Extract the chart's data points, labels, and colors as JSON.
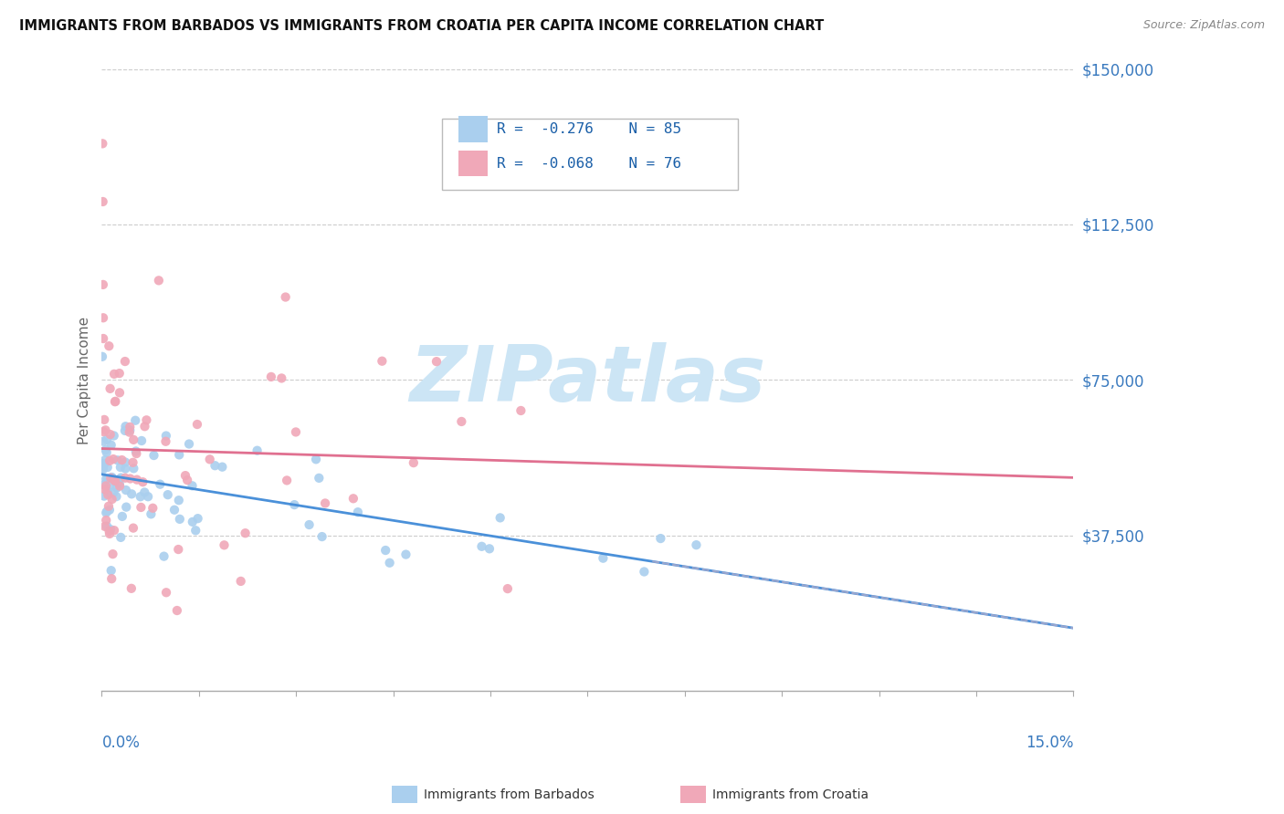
{
  "title": "IMMIGRANTS FROM BARBADOS VS IMMIGRANTS FROM CROATIA PER CAPITA INCOME CORRELATION CHART",
  "source": "Source: ZipAtlas.com",
  "ylabel": "Per Capita Income",
  "y_ticks": [
    0,
    37500,
    75000,
    112500,
    150000
  ],
  "y_tick_labels": [
    "",
    "$37,500",
    "$75,000",
    "$112,500",
    "$150,000"
  ],
  "x_min": 0.0,
  "x_max": 15.0,
  "y_min": 0,
  "y_max": 150000,
  "barbados_color": "#aacfee",
  "croatia_color": "#f0a8b8",
  "barbados_R": -0.276,
  "barbados_N": 85,
  "croatia_R": -0.068,
  "croatia_N": 76,
  "watermark": "ZIPatlas",
  "watermark_color": "#cce5f5",
  "axis_label_color": "#3a7abf",
  "regression_barbados_color": "#4a90d9",
  "regression_croatia_color": "#e07090",
  "bottom_legend_barbados": "Immigrants from Barbados",
  "bottom_legend_croatia": "Immigrants from Croatia"
}
